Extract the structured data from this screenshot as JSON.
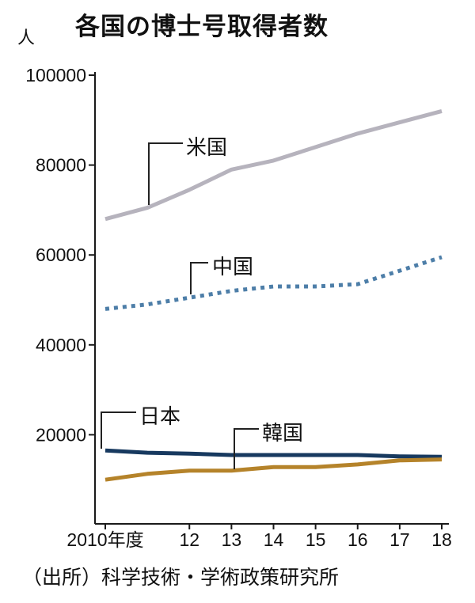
{
  "title": "各国の博士号取得者数",
  "unit_label": "人",
  "source": "（出所）科学技術・学術政策研究所",
  "chart_data": {
    "type": "line",
    "title": "各国の博士号取得者数",
    "ylabel": "人",
    "ylim": [
      0,
      100000
    ],
    "grid": false,
    "legend_position": "inline-annotations",
    "x": [
      2010,
      2011,
      2012,
      2013,
      2014,
      2015,
      2016,
      2017,
      2018
    ],
    "x_tick_labels": [
      {
        "year": 2010,
        "label": "2010年度"
      },
      {
        "year": 2012,
        "label": "12"
      },
      {
        "year": 2013,
        "label": "13"
      },
      {
        "year": 2014,
        "label": "14"
      },
      {
        "year": 2015,
        "label": "15"
      },
      {
        "year": 2016,
        "label": "16"
      },
      {
        "year": 2017,
        "label": "17"
      },
      {
        "year": 2018,
        "label": "18"
      }
    ],
    "y_ticks": [
      20000,
      40000,
      60000,
      80000,
      100000
    ],
    "series": [
      {
        "key": "usa",
        "name": "米国",
        "color": "#b6b3bd",
        "style": "solid",
        "values": [
          68000,
          70500,
          74500,
          79000,
          81000,
          84000,
          87000,
          89500,
          92000
        ]
      },
      {
        "key": "china",
        "name": "中国",
        "color": "#4d7ea8",
        "style": "dashed",
        "values": [
          48000,
          49000,
          50500,
          52000,
          53000,
          53000,
          53500,
          56500,
          59500
        ]
      },
      {
        "key": "japan",
        "name": "日本",
        "color": "#17395f",
        "style": "solid",
        "values": [
          16500,
          16000,
          15800,
          15500,
          15500,
          15500,
          15500,
          15200,
          15100
        ]
      },
      {
        "key": "korea",
        "name": "韓国",
        "color": "#b5832a",
        "style": "solid",
        "values": [
          10000,
          11300,
          12000,
          12000,
          12800,
          12800,
          13400,
          14300,
          14500
        ]
      }
    ],
    "annotations": [
      {
        "key": "usa",
        "label": "米国"
      },
      {
        "key": "china",
        "label": "中国"
      },
      {
        "key": "japan",
        "label": "日本"
      },
      {
        "key": "korea",
        "label": "韓国"
      }
    ]
  }
}
